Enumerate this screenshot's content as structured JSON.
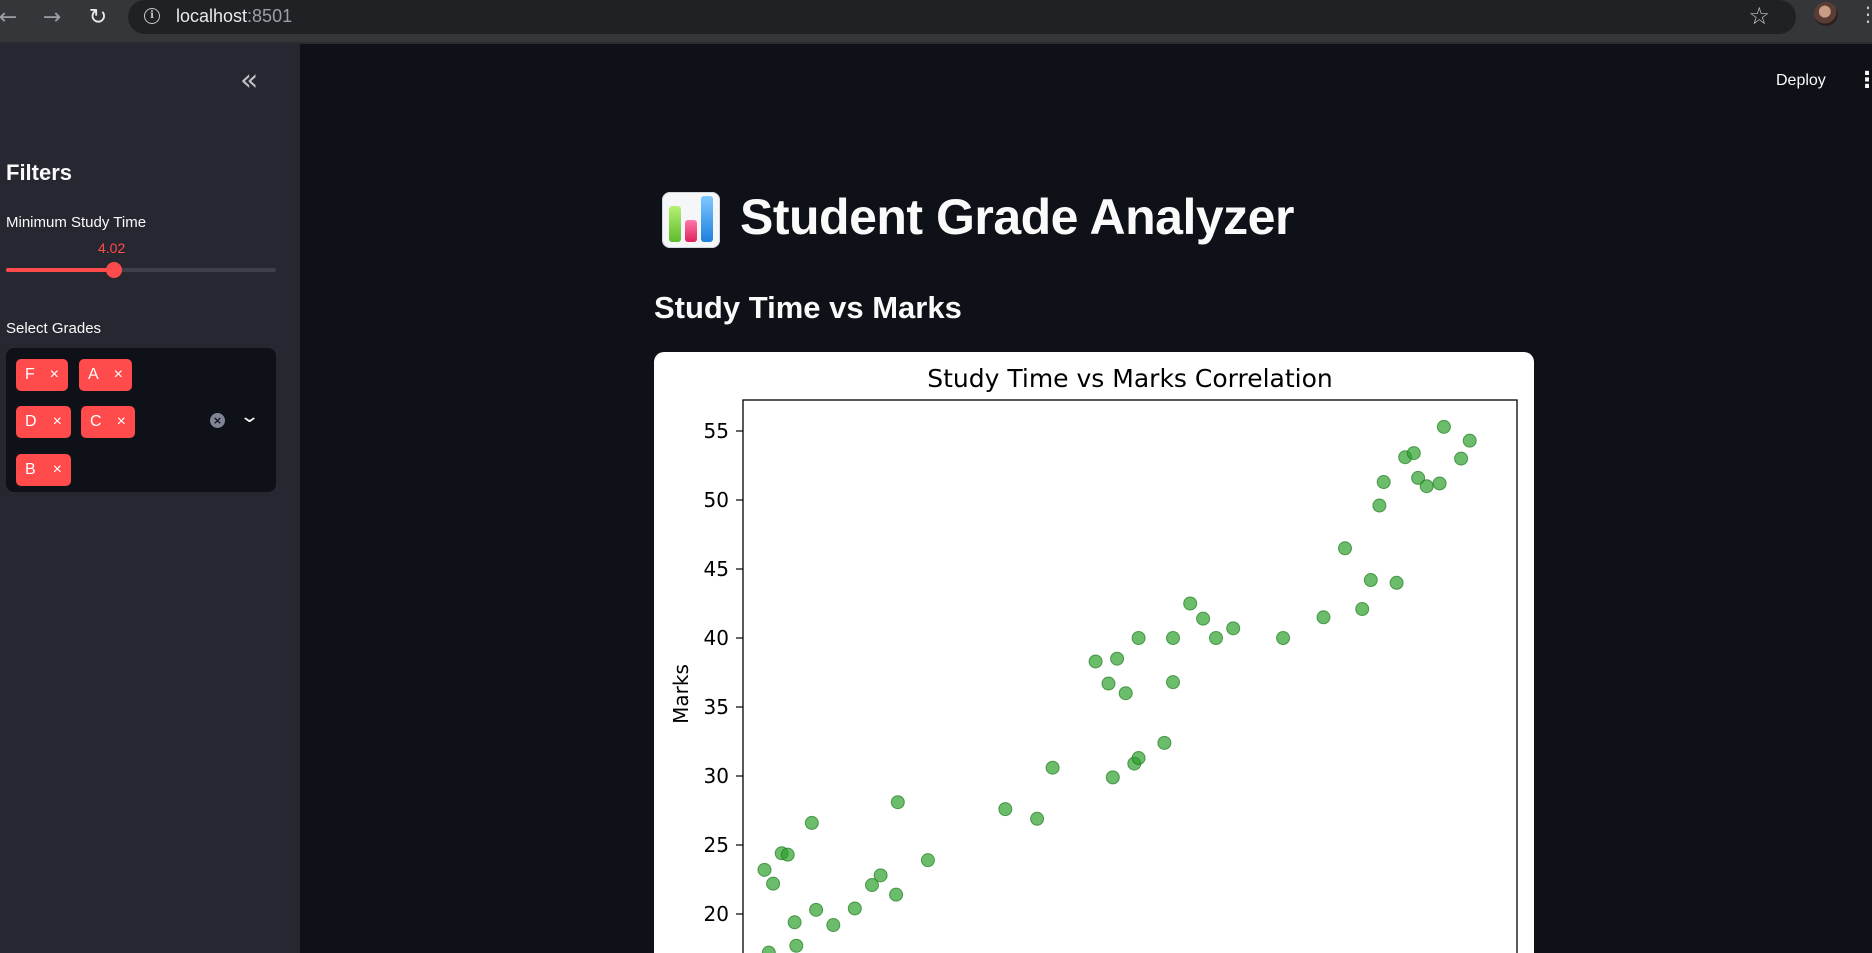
{
  "browser": {
    "url_host": "localhost",
    "url_port": ":8501",
    "icons": [
      "back-arrow-icon",
      "forward-arrow-icon",
      "reload-icon",
      "info-icon",
      "star-icon",
      "profile-avatar",
      "chrome-menu-icon"
    ]
  },
  "sidebar": {
    "collapse_icon": "«",
    "filters_title": "Filters",
    "slider": {
      "label": "Minimum Study Time",
      "value_label": "4.02",
      "fraction": 0.4
    },
    "multiselect": {
      "label": "Select Grades",
      "selected": [
        {
          "label": "F",
          "remove": "×"
        },
        {
          "label": "A",
          "remove": "×"
        },
        {
          "label": "D",
          "remove": "×"
        },
        {
          "label": "C",
          "remove": "×"
        },
        {
          "label": "B",
          "remove": "×"
        }
      ],
      "clear_icon": "×",
      "dropdown_icon": "⌄"
    }
  },
  "header": {
    "deploy_label": "Deploy",
    "menu_icon": "⋮"
  },
  "main": {
    "title": "Student Grade Analyzer",
    "title_icon": "bar-chart-emoji",
    "subheader": "Study Time vs Marks"
  },
  "colors": {
    "accent": "#ff4b4b",
    "point": "#2ca02c",
    "background": "#0e1117",
    "sidebar": "#262730"
  },
  "chart_data": {
    "type": "scatter",
    "title": "Study Time vs Marks Correlation",
    "xlabel": "",
    "ylabel": "Marks",
    "ylim": [
      16.5,
      57.2
    ],
    "yticks": [
      20,
      25,
      30,
      35,
      40,
      45,
      50,
      55
    ],
    "grid": false,
    "x_visible_range": [
      0.6,
      9.6
    ],
    "points": [
      {
        "x": 0.85,
        "y": 23.2
      },
      {
        "x": 0.95,
        "y": 22.2
      },
      {
        "x": 1.05,
        "y": 24.4
      },
      {
        "x": 1.12,
        "y": 24.3
      },
      {
        "x": 1.2,
        "y": 19.4
      },
      {
        "x": 1.4,
        "y": 26.6
      },
      {
        "x": 1.45,
        "y": 20.3
      },
      {
        "x": 1.65,
        "y": 19.2
      },
      {
        "x": 1.9,
        "y": 20.4
      },
      {
        "x": 2.1,
        "y": 22.1
      },
      {
        "x": 2.2,
        "y": 22.8
      },
      {
        "x": 2.38,
        "y": 21.4
      },
      {
        "x": 2.4,
        "y": 28.1
      },
      {
        "x": 2.75,
        "y": 23.9
      },
      {
        "x": 0.9,
        "y": 17.2
      },
      {
        "x": 1.22,
        "y": 17.7
      },
      {
        "x": 3.65,
        "y": 27.6
      },
      {
        "x": 4.02,
        "y": 26.9
      },
      {
        "x": 4.2,
        "y": 30.6
      },
      {
        "x": 4.7,
        "y": 38.3
      },
      {
        "x": 4.85,
        "y": 36.7
      },
      {
        "x": 4.9,
        "y": 29.9
      },
      {
        "x": 4.95,
        "y": 38.5
      },
      {
        "x": 5.05,
        "y": 36.0
      },
      {
        "x": 5.15,
        "y": 30.9
      },
      {
        "x": 5.2,
        "y": 31.3
      },
      {
        "x": 5.2,
        "y": 40.0
      },
      {
        "x": 5.5,
        "y": 32.4
      },
      {
        "x": 5.6,
        "y": 40.0
      },
      {
        "x": 5.6,
        "y": 36.8
      },
      {
        "x": 5.8,
        "y": 42.5
      },
      {
        "x": 5.95,
        "y": 41.4
      },
      {
        "x": 6.1,
        "y": 40.0
      },
      {
        "x": 6.3,
        "y": 40.7
      },
      {
        "x": 6.88,
        "y": 40.0
      },
      {
        "x": 7.35,
        "y": 41.5
      },
      {
        "x": 7.6,
        "y": 46.5
      },
      {
        "x": 7.8,
        "y": 42.1
      },
      {
        "x": 7.9,
        "y": 44.2
      },
      {
        "x": 8.0,
        "y": 49.6
      },
      {
        "x": 8.05,
        "y": 51.3
      },
      {
        "x": 8.2,
        "y": 44.0
      },
      {
        "x": 8.3,
        "y": 53.1
      },
      {
        "x": 8.4,
        "y": 53.4
      },
      {
        "x": 8.45,
        "y": 51.6
      },
      {
        "x": 8.55,
        "y": 51.0
      },
      {
        "x": 8.7,
        "y": 51.2
      },
      {
        "x": 8.75,
        "y": 55.3
      },
      {
        "x": 8.95,
        "y": 53.0
      },
      {
        "x": 9.05,
        "y": 54.3
      }
    ]
  }
}
